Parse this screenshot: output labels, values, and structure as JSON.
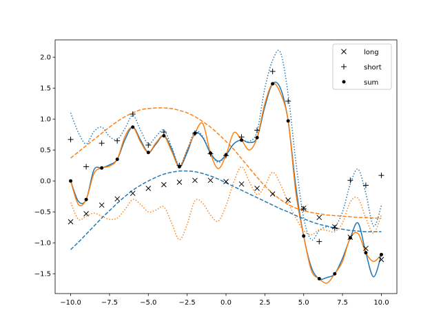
{
  "chart_data": {
    "type": "line",
    "xlim": [
      -11.0,
      11.0
    ],
    "ylim": [
      -1.82,
      2.28
    ],
    "grid": false,
    "legend_placement": "top-right",
    "x_ticks": [
      -10.0,
      -7.5,
      -5.0,
      -2.5,
      0.0,
      2.5,
      5.0,
      7.5,
      10.0
    ],
    "x_tick_labels": [
      "−10.0",
      "−7.5",
      "−5.0",
      "−2.5",
      "0.0",
      "2.5",
      "5.0",
      "7.5",
      "10.0"
    ],
    "y_ticks": [
      -1.5,
      -1.0,
      -0.5,
      0.0,
      0.5,
      1.0,
      1.5,
      2.0
    ],
    "y_tick_labels": [
      "−1.5",
      "−1.0",
      "−0.5",
      "0.0",
      "0.5",
      "1.0",
      "1.5",
      "2.0"
    ],
    "colors": {
      "blue": "#1f77b4",
      "orange": "#ff7f0e",
      "black": "#000000"
    },
    "legend": [
      {
        "label": "long",
        "marker": "x"
      },
      {
        "label": "short",
        "marker": "plus"
      },
      {
        "label": "sum",
        "marker": "dot"
      }
    ],
    "scatter_series": [
      {
        "name": "long",
        "marker": "x",
        "x": [
          -10,
          -9,
          -8,
          -7,
          -6,
          -5,
          -4,
          -3,
          -2,
          -1,
          0,
          1,
          2,
          3,
          4,
          5,
          6,
          7,
          8,
          9,
          10
        ],
        "y": [
          -0.66,
          -0.53,
          -0.39,
          -0.29,
          -0.2,
          -0.12,
          -0.06,
          -0.02,
          0.01,
          0.01,
          -0.01,
          -0.05,
          -0.12,
          -0.21,
          -0.31,
          -0.44,
          -0.59,
          -0.74,
          -0.91,
          -1.09,
          -1.27
        ]
      },
      {
        "name": "short",
        "marker": "plus",
        "x": [
          -10,
          -9,
          -8,
          -7,
          -6,
          -5,
          -4,
          -3,
          -2,
          -1,
          0,
          1,
          2,
          3,
          4,
          5,
          6,
          7,
          8,
          9,
          10
        ],
        "y": [
          0.67,
          0.23,
          0.61,
          0.65,
          1.08,
          0.58,
          0.79,
          0.25,
          0.77,
          0.44,
          0.41,
          0.71,
          0.82,
          1.77,
          1.29,
          -0.45,
          -0.98,
          -0.76,
          0.01,
          -0.07,
          0.09
        ]
      },
      {
        "name": "sum",
        "marker": "dot",
        "x": [
          -10,
          -9,
          -8,
          -7,
          -6,
          -5,
          -4,
          -3,
          -2,
          -1,
          0,
          1,
          2,
          3,
          4,
          5,
          6,
          7,
          8,
          9,
          10
        ],
        "y": [
          0.0,
          -0.3,
          0.21,
          0.35,
          0.87,
          0.46,
          0.73,
          0.23,
          0.77,
          0.45,
          0.42,
          0.66,
          0.7,
          1.57,
          0.97,
          -0.89,
          -1.58,
          -1.5,
          -0.92,
          -1.16,
          -1.19
        ]
      }
    ],
    "line_series": [
      {
        "color": "blue",
        "style": "solid",
        "x": [
          -10,
          -9.5,
          -9,
          -8.5,
          -8,
          -7.5,
          -7,
          -6.5,
          -6,
          -5.5,
          -5,
          -4.5,
          -4,
          -3.5,
          -3,
          -2.5,
          -2,
          -1.5,
          -1,
          -0.5,
          0,
          0.5,
          1,
          1.5,
          2,
          2.5,
          3,
          3.5,
          4,
          4.5,
          5,
          5.5,
          6,
          6.5,
          7,
          7.5,
          8,
          8.5,
          9,
          9.5,
          10
        ],
        "y": [
          0.0,
          -0.33,
          -0.3,
          0.18,
          0.21,
          0.26,
          0.35,
          0.67,
          0.87,
          0.66,
          0.46,
          0.6,
          0.73,
          0.52,
          0.23,
          0.46,
          0.77,
          0.7,
          0.45,
          0.32,
          0.42,
          0.6,
          0.66,
          0.62,
          0.7,
          1.2,
          1.57,
          1.5,
          0.97,
          -0.1,
          -0.89,
          -1.4,
          -1.58,
          -1.56,
          -1.5,
          -1.25,
          -0.92,
          -0.68,
          -1.16,
          -1.55,
          -1.19
        ]
      },
      {
        "color": "orange",
        "style": "solid",
        "x": [
          -10,
          -9.5,
          -9,
          -8.5,
          -8,
          -7.5,
          -7,
          -6.5,
          -6,
          -5.5,
          -5,
          -4.5,
          -4,
          -3.5,
          -3,
          -2.5,
          -2,
          -1.5,
          -1,
          -0.5,
          0,
          0.5,
          1,
          1.5,
          2,
          2.5,
          3,
          3.5,
          4,
          4.5,
          5,
          5.5,
          6,
          6.5,
          7,
          7.5,
          8,
          8.5,
          9,
          9.5,
          10
        ],
        "y": [
          0.0,
          -0.38,
          -0.3,
          0.12,
          0.21,
          0.24,
          0.35,
          0.72,
          0.87,
          0.63,
          0.46,
          0.62,
          0.73,
          0.48,
          0.23,
          0.5,
          0.77,
          0.93,
          0.45,
          0.2,
          0.42,
          0.78,
          0.66,
          0.5,
          0.7,
          1.25,
          1.57,
          1.42,
          0.97,
          -0.2,
          -0.89,
          -1.45,
          -1.58,
          -1.65,
          -1.5,
          -1.3,
          -0.92,
          -0.85,
          -1.16,
          -1.3,
          -1.19
        ]
      },
      {
        "color": "blue",
        "style": "dashed",
        "x": [
          -10,
          -9.5,
          -9,
          -8.5,
          -8,
          -7.5,
          -7,
          -6.5,
          -6,
          -5.5,
          -5,
          -4.5,
          -4,
          -3.5,
          -3,
          -2.5,
          -2,
          -1.5,
          -1,
          -0.5,
          0,
          0.5,
          1,
          1.5,
          2,
          2.5,
          3,
          3.5,
          4,
          4.5,
          5,
          5.5,
          6,
          6.5,
          7,
          7.5,
          8,
          8.5,
          9,
          9.5,
          10
        ],
        "y": [
          -1.11,
          -0.99,
          -0.86,
          -0.73,
          -0.6,
          -0.48,
          -0.36,
          -0.25,
          -0.15,
          -0.07,
          0.0,
          0.06,
          0.11,
          0.14,
          0.16,
          0.16,
          0.15,
          0.12,
          0.08,
          0.03,
          -0.03,
          -0.09,
          -0.15,
          -0.21,
          -0.27,
          -0.33,
          -0.39,
          -0.45,
          -0.5,
          -0.56,
          -0.61,
          -0.66,
          -0.7,
          -0.73,
          -0.76,
          -0.78,
          -0.8,
          -0.81,
          -0.82,
          -0.82,
          -0.82
        ]
      },
      {
        "color": "orange",
        "style": "dashed",
        "x": [
          -10,
          -9.5,
          -9,
          -8.5,
          -8,
          -7.5,
          -7,
          -6.5,
          -6,
          -5.5,
          -5,
          -4.5,
          -4,
          -3.5,
          -3,
          -2.5,
          -2,
          -1.5,
          -1,
          -0.5,
          0,
          0.5,
          1,
          1.5,
          2,
          2.5,
          3,
          3.5,
          4,
          4.5,
          5,
          5.5,
          6,
          6.5,
          7,
          7.5,
          8,
          8.5,
          9,
          9.5,
          10
        ],
        "y": [
          0.37,
          0.47,
          0.57,
          0.67,
          0.77,
          0.87,
          0.96,
          1.04,
          1.1,
          1.15,
          1.17,
          1.18,
          1.18,
          1.17,
          1.14,
          1.1,
          1.04,
          0.96,
          0.87,
          0.76,
          0.64,
          0.51,
          0.36,
          0.21,
          0.06,
          -0.08,
          -0.2,
          -0.3,
          -0.38,
          -0.44,
          -0.48,
          -0.51,
          -0.53,
          -0.55,
          -0.56,
          -0.57,
          -0.58,
          -0.59,
          -0.59,
          -0.6,
          -0.6
        ]
      },
      {
        "color": "blue",
        "style": "dotted",
        "x": [
          -10,
          -9.5,
          -9,
          -8.5,
          -8,
          -7.5,
          -7,
          -6.5,
          -6,
          -5.5,
          -5,
          -4.5,
          -4,
          -3.5,
          -3,
          -2.5,
          -2,
          -1.5,
          -1,
          -0.5,
          0,
          0.5,
          1,
          1.5,
          2,
          2.5,
          3,
          3.5,
          4,
          4.5,
          5,
          5.5,
          6,
          6.5,
          7,
          7.5,
          8,
          8.5,
          9,
          9.5,
          10
        ],
        "y": [
          1.1,
          0.78,
          0.6,
          0.8,
          0.87,
          0.72,
          0.67,
          0.85,
          1.06,
          0.82,
          0.6,
          0.72,
          0.82,
          0.55,
          0.25,
          0.5,
          0.8,
          0.72,
          0.45,
          0.3,
          0.42,
          0.6,
          0.66,
          0.64,
          0.8,
          1.5,
          1.95,
          2.08,
          1.4,
          0.3,
          -0.6,
          -0.95,
          -0.8,
          -0.74,
          -0.74,
          -0.5,
          -0.05,
          0.19,
          -0.2,
          -0.73,
          -0.4
        ]
      },
      {
        "color": "orange",
        "style": "dotted",
        "x": [
          -10,
          -9.5,
          -9,
          -8.5,
          -8,
          -7.5,
          -7,
          -6.5,
          -6,
          -5.5,
          -5,
          -4.5,
          -4,
          -3.5,
          -3,
          -2.5,
          -2,
          -1.5,
          -1,
          -0.5,
          0,
          0.5,
          1,
          1.5,
          2,
          2.5,
          3,
          3.5,
          4,
          4.5,
          5,
          5.5,
          6,
          6.5,
          7,
          7.5,
          8,
          8.5,
          9,
          9.5,
          10
        ],
        "y": [
          -0.35,
          -0.62,
          -0.57,
          -0.52,
          -0.57,
          -0.62,
          -0.6,
          -0.46,
          -0.3,
          -0.38,
          -0.5,
          -0.47,
          -0.42,
          -0.68,
          -0.95,
          -0.7,
          -0.32,
          -0.36,
          -0.55,
          -0.65,
          -0.4,
          -0.02,
          0.23,
          -0.01,
          -0.22,
          -0.08,
          0.14,
          -0.05,
          -0.35,
          -0.6,
          -0.8,
          -0.87,
          -0.79,
          -0.8,
          -0.82,
          -0.68,
          -0.34,
          -0.28,
          -0.6,
          -0.84,
          -0.55
        ]
      }
    ]
  }
}
